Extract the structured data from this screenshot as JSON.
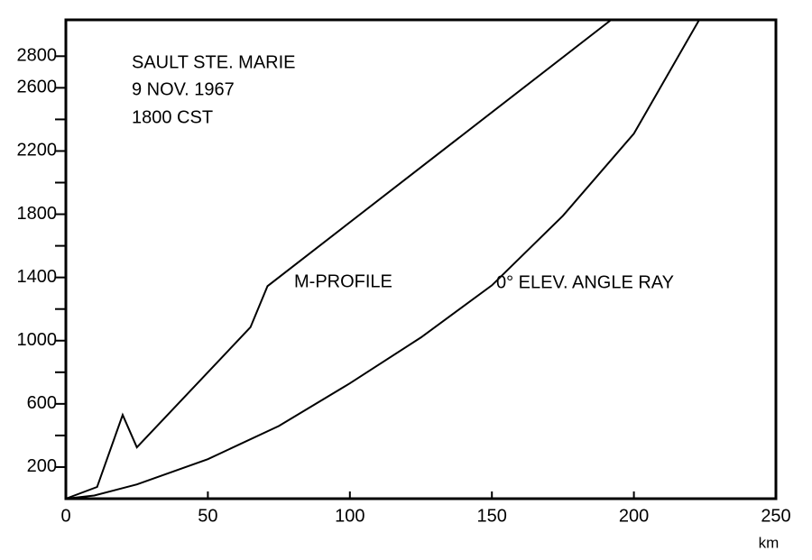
{
  "chart_data": {
    "type": "line",
    "annotations": [
      "SAULT STE. MARIE",
      "9 NOV. 1967",
      "1800 CST"
    ],
    "x_label": "km",
    "xlim": [
      0,
      250
    ],
    "xticks": [
      0,
      50,
      100,
      150,
      200,
      250
    ],
    "ylim": [
      0,
      3030
    ],
    "yticks": [
      200,
      600,
      1000,
      1400,
      1800,
      2200,
      2600,
      2800
    ],
    "y_minor_ticks": [
      400,
      800,
      1200,
      1600,
      2000,
      2400
    ],
    "series": [
      {
        "name": "M-PROFILE",
        "color": "#000000",
        "x": [
          0,
          11,
          20,
          25,
          65,
          71,
          192
        ],
        "values": [
          0,
          74,
          530,
          325,
          1085,
          1345,
          3030
        ]
      },
      {
        "name": "0° ELEV. ANGLE RAY",
        "color": "#000000",
        "x": [
          0,
          10,
          25,
          50,
          75,
          100,
          125,
          150,
          175,
          200,
          223
        ],
        "values": [
          0,
          20,
          90,
          250,
          460,
          730,
          1020,
          1350,
          1790,
          2310,
          3030
        ]
      }
    ]
  }
}
